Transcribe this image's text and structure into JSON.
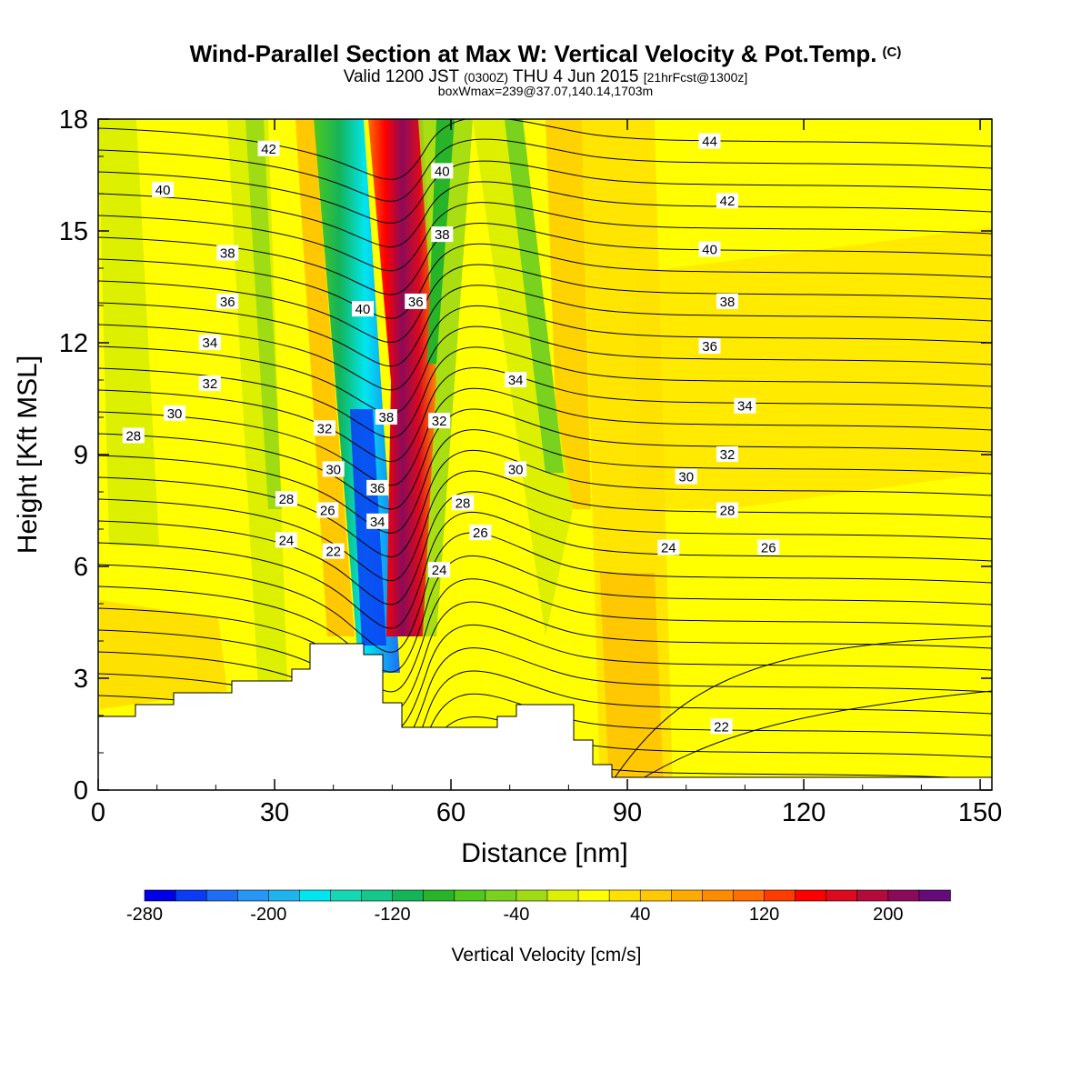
{
  "title": {
    "main": "Wind-Parallel Section at Max W: Vertical Velocity & Pot.Temp.",
    "copyright": "(C)",
    "valid_prefix": "Valid 1200 JST",
    "valid_utc": "(0300Z)",
    "valid_date": "THU 4 Jun 2015",
    "forecast": "[21hrFcst@1300z]",
    "boxwmax": "boxWmax=239@37.07,140.14,1703m"
  },
  "chart_data": {
    "type": "heatmap",
    "xlabel": "Distance [nm]",
    "ylabel": "Height [Kft MSL]",
    "xlim": [
      0,
      152
    ],
    "ylim": [
      0,
      18
    ],
    "x_ticks": [
      0,
      30,
      60,
      90,
      120,
      150
    ],
    "y_ticks": [
      0,
      3,
      6,
      9,
      12,
      15,
      18
    ],
    "colorbar": {
      "title": "Vertical Velocity [cm/s]",
      "levels": [
        -280,
        -260,
        -240,
        -220,
        -200,
        -180,
        -160,
        -140,
        -120,
        -100,
        -80,
        -60,
        -40,
        -20,
        0,
        20,
        40,
        60,
        80,
        100,
        120,
        140,
        160,
        180,
        200,
        220,
        240
      ],
      "tick_labels": [
        -280,
        -200,
        -120,
        -40,
        40,
        120,
        200
      ],
      "colors": [
        "#0000e6",
        "#0a3cf5",
        "#1e6ef5",
        "#2896f5",
        "#1eb4f0",
        "#00e6f0",
        "#14d7b4",
        "#14c88c",
        "#14b45a",
        "#28b428",
        "#50c81e",
        "#78d21e",
        "#a0dc14",
        "#dcf000",
        "#ffff00",
        "#ffe100",
        "#ffc800",
        "#ffaa00",
        "#ff8c00",
        "#ff6e00",
        "#ff3c00",
        "#ff0000",
        "#dc0a1e",
        "#b40a3c",
        "#8c0a5a",
        "#640a7a"
      ]
    },
    "contour_labels": [
      {
        "x": 29,
        "y": 17.2,
        "v": "42"
      },
      {
        "x": 11,
        "y": 16.1,
        "v": "40"
      },
      {
        "x": 22,
        "y": 14.4,
        "v": "38"
      },
      {
        "x": 22,
        "y": 13.1,
        "v": "36"
      },
      {
        "x": 19,
        "y": 12.0,
        "v": "34"
      },
      {
        "x": 19,
        "y": 10.9,
        "v": "32"
      },
      {
        "x": 13,
        "y": 10.1,
        "v": "30"
      },
      {
        "x": 6,
        "y": 9.5,
        "v": "28"
      },
      {
        "x": 38.5,
        "y": 9.7,
        "v": "32"
      },
      {
        "x": 40,
        "y": 8.6,
        "v": "30"
      },
      {
        "x": 32,
        "y": 7.8,
        "v": "28"
      },
      {
        "x": 39,
        "y": 7.5,
        "v": "26"
      },
      {
        "x": 32,
        "y": 6.7,
        "v": "24"
      },
      {
        "x": 40,
        "y": 6.4,
        "v": "22"
      },
      {
        "x": 45,
        "y": 12.9,
        "v": "40"
      },
      {
        "x": 49,
        "y": 10.0,
        "v": "38"
      },
      {
        "x": 47.5,
        "y": 8.1,
        "v": "36"
      },
      {
        "x": 47.5,
        "y": 7.2,
        "v": "34"
      },
      {
        "x": 54,
        "y": 13.1,
        "v": "36"
      },
      {
        "x": 58,
        "y": 9.9,
        "v": "32"
      },
      {
        "x": 58,
        "y": 5.9,
        "v": "24"
      },
      {
        "x": 58.5,
        "y": 16.6,
        "v": "40"
      },
      {
        "x": 58.5,
        "y": 14.9,
        "v": "38"
      },
      {
        "x": 71,
        "y": 11.0,
        "v": "34"
      },
      {
        "x": 71,
        "y": 8.6,
        "v": "30"
      },
      {
        "x": 62,
        "y": 7.7,
        "v": "28"
      },
      {
        "x": 65,
        "y": 6.9,
        "v": "26"
      },
      {
        "x": 104,
        "y": 17.4,
        "v": "44"
      },
      {
        "x": 107,
        "y": 15.8,
        "v": "42"
      },
      {
        "x": 104,
        "y": 14.5,
        "v": "40"
      },
      {
        "x": 107,
        "y": 13.1,
        "v": "38"
      },
      {
        "x": 104,
        "y": 11.9,
        "v": "36"
      },
      {
        "x": 110,
        "y": 10.3,
        "v": "34"
      },
      {
        "x": 107,
        "y": 9.0,
        "v": "32"
      },
      {
        "x": 100,
        "y": 8.4,
        "v": "30"
      },
      {
        "x": 107,
        "y": 7.5,
        "v": "28"
      },
      {
        "x": 114,
        "y": 6.5,
        "v": "26"
      },
      {
        "x": 97,
        "y": 6.5,
        "v": "24"
      },
      {
        "x": 106,
        "y": 1.7,
        "v": "22"
      }
    ]
  }
}
